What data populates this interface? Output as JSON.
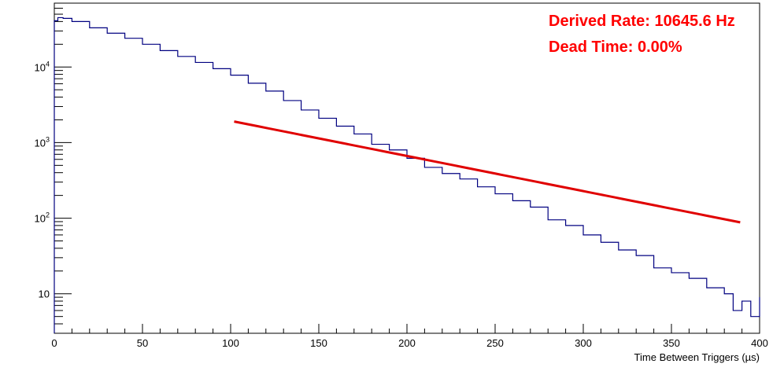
{
  "chart_data": {
    "type": "line",
    "xlabel": "Time Between Triggers (µs)",
    "ylabel": "",
    "xlim": [
      0,
      400
    ],
    "ylim": [
      3,
      70000
    ],
    "y_scale": "log",
    "grid": false,
    "x_ticks": [
      0,
      50,
      100,
      150,
      200,
      250,
      300,
      350,
      400
    ],
    "x_tick_labels": [
      "0",
      "50",
      "100",
      "150",
      "200",
      "250",
      "300",
      "350",
      "400"
    ],
    "y_ticks": [
      10,
      100,
      1000,
      10000
    ],
    "y_tick_labels": [
      {
        "base": "10",
        "exp": ""
      },
      {
        "base": "10",
        "exp": "2"
      },
      {
        "base": "10",
        "exp": "3"
      },
      {
        "base": "10",
        "exp": "4"
      }
    ],
    "annotations": [
      "Derived Rate: 10645.6 Hz",
      "Dead Time: 0.00%"
    ],
    "colors": {
      "histogram": "#000080",
      "fit": "#e00000",
      "annotation": "#ff0000"
    },
    "series": [
      {
        "type": "step-histogram",
        "x": [
          0,
          2,
          5,
          10,
          20,
          30,
          40,
          50,
          60,
          70,
          80,
          90,
          100,
          110,
          120,
          130,
          140,
          150,
          160,
          170,
          180,
          190,
          200,
          210,
          220,
          230,
          240,
          250,
          260,
          270,
          280,
          290,
          300,
          310,
          320,
          330,
          340,
          350,
          360,
          370,
          380,
          385,
          390,
          395,
          400
        ],
        "values": [
          41000,
          45000,
          44000,
          40000,
          33000,
          28000,
          24000,
          20000,
          16500,
          13800,
          11500,
          9500,
          7800,
          6100,
          4800,
          3600,
          2700,
          2100,
          1650,
          1300,
          950,
          800,
          620,
          470,
          390,
          330,
          260,
          210,
          170,
          140,
          95,
          80,
          60,
          48,
          38,
          32,
          22,
          19,
          16,
          12,
          10,
          6,
          8,
          5,
          9
        ]
      },
      {
        "type": "fit",
        "x": [
          102,
          389
        ],
        "values": [
          1900,
          88
        ]
      }
    ]
  }
}
